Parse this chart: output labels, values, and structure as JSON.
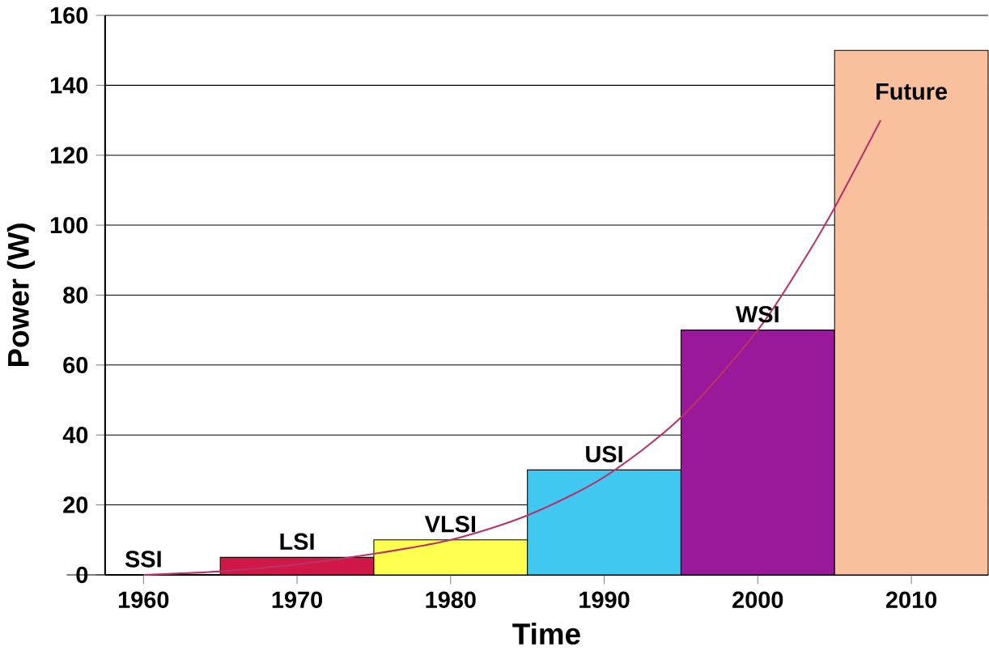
{
  "chart_data": {
    "type": "bar",
    "xlabel": "Time",
    "ylabel": "Power (W)",
    "x": [
      1960,
      1970,
      1980,
      1990,
      2000,
      2010
    ],
    "xlim": [
      1957.5,
      2015
    ],
    "xticks": [
      1960,
      1970,
      1980,
      1990,
      2000,
      2010
    ],
    "ylim": [
      0,
      160
    ],
    "yticks": [
      0,
      20,
      40,
      60,
      80,
      100,
      120,
      140,
      160
    ],
    "grid": "y",
    "series": [
      {
        "values": [
          0,
          5,
          10,
          30,
          70,
          150
        ],
        "colors": [
          "#d01848",
          "#d01848",
          "#ffff50",
          "#40c8f0",
          "#9a189a",
          "#f9c09e"
        ]
      },
      {
        "type": "line",
        "x": [
          1960,
          1965,
          1970,
          1975,
          1980,
          1985,
          1990,
          1995,
          2000,
          2003,
          2005,
          2008
        ],
        "values": [
          0,
          1,
          3,
          6,
          10,
          17,
          28,
          45,
          70,
          90,
          105,
          130
        ],
        "color": "#b8336a"
      }
    ],
    "annotations": [
      {
        "text": "SSI",
        "x": 1960,
        "y": 0
      },
      {
        "text": "LSI",
        "x": 1970,
        "y": 5
      },
      {
        "text": "VLSI",
        "x": 1980,
        "y": 10
      },
      {
        "text": "USI",
        "x": 1990,
        "y": 30
      },
      {
        "text": "WSI",
        "x": 2000,
        "y": 70
      },
      {
        "text": "Future",
        "x": 2010,
        "y": 150
      }
    ]
  }
}
